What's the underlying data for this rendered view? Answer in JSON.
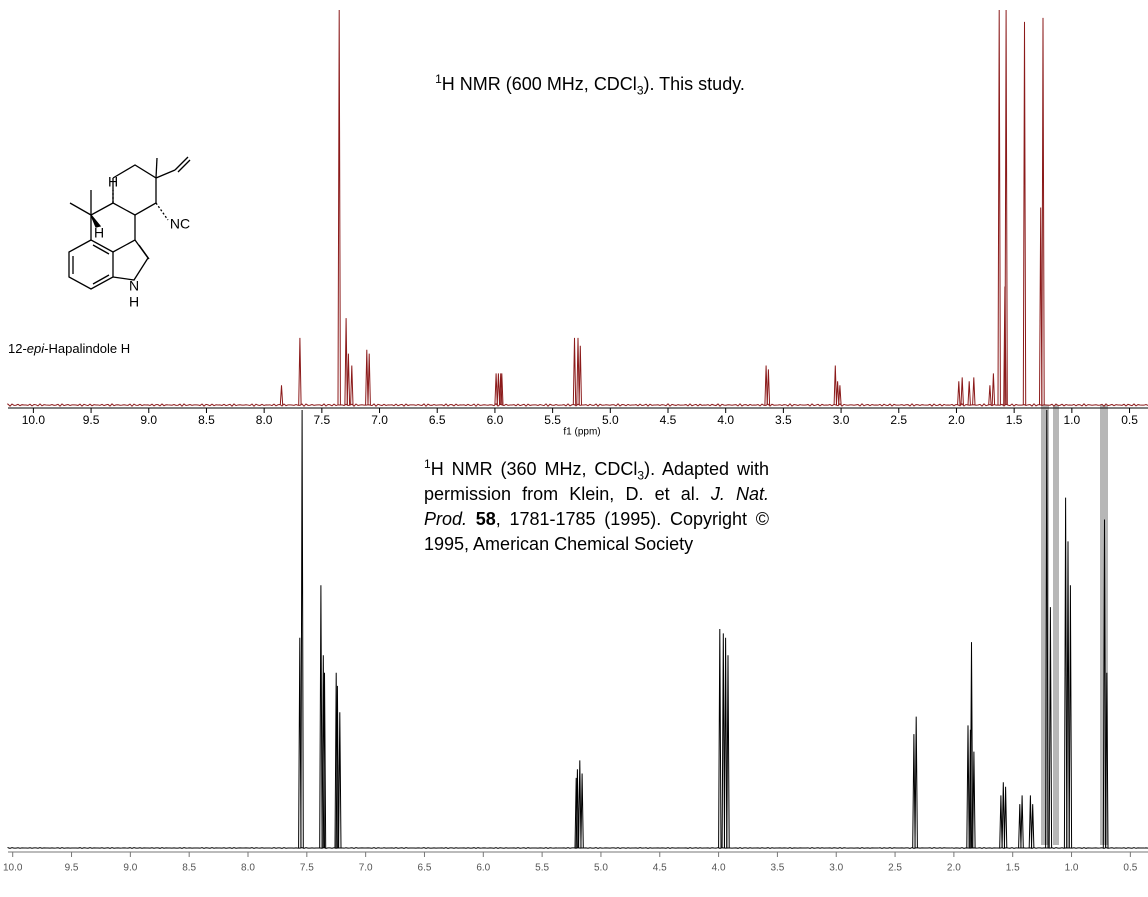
{
  "chart_data": [
    {
      "type": "spectrum",
      "color": "#8b1a1a",
      "annotation": [
        {
          "text": "1",
          "style": "sup"
        },
        {
          "text": "H NMR (600 MHz, CDCl"
        },
        {
          "text": "3",
          "style": "sub"
        },
        {
          "text": "). This study."
        }
      ],
      "xlabel": "f1 (ppm)",
      "xlim": [
        10.22,
        0.34
      ],
      "ylim": [
        0,
        100
      ],
      "xticks": [
        {
          "value": 10,
          "label": "10.0"
        },
        9.5,
        {
          "value": 9,
          "label": "9.0"
        },
        8.5,
        {
          "value": 8,
          "label": "8.0"
        },
        7.5,
        {
          "value": 7,
          "label": "7.0"
        },
        6.5,
        {
          "value": 6,
          "label": "6.0"
        },
        5.5,
        {
          "value": 5,
          "label": "5.0"
        },
        4.5,
        {
          "value": 4,
          "label": "4.0"
        },
        3.5,
        {
          "value": 3,
          "label": "3.0"
        },
        2.5,
        {
          "value": 2,
          "label": "2.0"
        },
        1.5,
        {
          "value": 1,
          "label": "1.0"
        },
        0.5
      ],
      "x": [
        7.85,
        7.69,
        7.35,
        7.29,
        7.27,
        7.24,
        7.11,
        7.09,
        5.99,
        5.97,
        5.95,
        5.94,
        5.31,
        5.28,
        5.26,
        3.65,
        3.63,
        3.05,
        3.03,
        3.01,
        1.98,
        1.95,
        1.89,
        1.85,
        1.71,
        1.68,
        1.63,
        1.58,
        1.57,
        1.41,
        1.27,
        1.25
      ],
      "values": [
        5,
        17,
        100,
        22,
        13,
        10,
        14,
        13,
        8,
        8,
        8,
        8,
        17,
        17,
        15,
        10,
        9,
        10,
        6,
        5,
        6,
        7,
        6,
        7,
        5,
        8,
        100,
        30,
        100,
        97,
        50,
        98
      ]
    },
    {
      "type": "spectrum",
      "color": "#000000",
      "annotation": [
        {
          "text": "1",
          "style": "sup"
        },
        {
          "text": "H NMR (360 MHz, CDCl"
        },
        {
          "text": "3",
          "style": "sub"
        },
        {
          "text": "). Adapted with permission from Klein, D. et al. "
        },
        {
          "text": "J. Nat. Prod. ",
          "style": "italic"
        },
        {
          "text": "58",
          "style": "bold"
        },
        {
          "text": ", 1781-1785 (1995). Copyright © 1995, American Chemical Society"
        }
      ],
      "xlim": [
        10.04,
        0.35
      ],
      "ylim": [
        0,
        100
      ],
      "xticks": [
        {
          "value": 10,
          "label": "10.0"
        },
        9.5,
        {
          "value": 9,
          "label": "9.0"
        },
        8.5,
        {
          "value": 8,
          "label": "8.0"
        },
        7.5,
        {
          "value": 7,
          "label": "7.0"
        },
        6.5,
        {
          "value": 6,
          "label": "6.0"
        },
        5.5,
        {
          "value": 5,
          "label": "5.0"
        },
        4.5,
        {
          "value": 4,
          "label": "4.0"
        },
        3.5,
        {
          "value": 3,
          "label": "3.0"
        },
        2.5,
        {
          "value": 2,
          "label": "2.0"
        },
        1.5,
        {
          "value": 1,
          "label": "1.0"
        },
        0.5
      ],
      "x": [
        7.56,
        7.54,
        7.38,
        7.36,
        7.35,
        7.25,
        7.24,
        7.22,
        5.21,
        5.2,
        5.18,
        5.16,
        3.99,
        3.96,
        3.94,
        3.92,
        2.34,
        2.32,
        1.88,
        1.86,
        1.85,
        1.83,
        1.6,
        1.58,
        1.56,
        1.44,
        1.42,
        1.35,
        1.33,
        1.21,
        1.18,
        1.05,
        1.03,
        1.01,
        0.72,
        0.7
      ],
      "values": [
        48,
        100,
        60,
        44,
        40,
        40,
        37,
        31,
        16,
        18,
        20,
        17,
        50,
        49,
        48,
        44,
        26,
        30,
        28,
        27,
        47,
        22,
        12,
        15,
        14,
        10,
        12,
        12,
        10,
        100,
        55,
        80,
        70,
        60,
        75,
        40
      ]
    }
  ],
  "structure": {
    "labels": [
      "H",
      "NC",
      "H",
      "N",
      "H"
    ],
    "name": [
      {
        "text": "12-"
      },
      {
        "text": "epi",
        "style": "italic"
      },
      {
        "text": "-Hapalindole H"
      }
    ]
  }
}
